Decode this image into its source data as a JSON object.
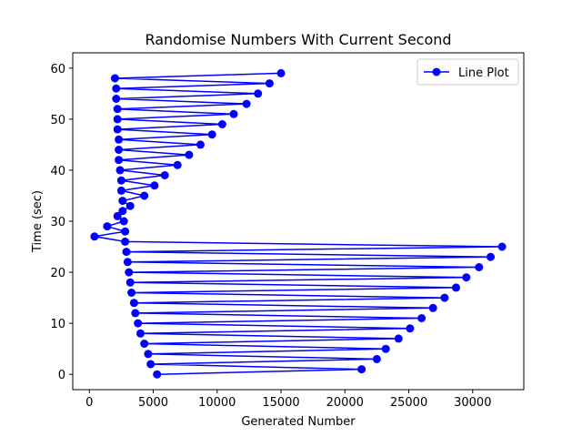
{
  "chart_data": {
    "type": "line",
    "title": "Randomise Numbers With Current Second",
    "xlabel": "Generated Number",
    "ylabel": "Time (sec)",
    "xlim": [
      -1300,
      34000
    ],
    "ylim": [
      -3,
      63
    ],
    "xticks": [
      0,
      5000,
      10000,
      15000,
      20000,
      25000,
      30000
    ],
    "yticks": [
      0,
      10,
      20,
      30,
      40,
      50,
      60
    ],
    "grid": false,
    "legend_position": "top-right",
    "colors": {
      "series": "#0000ff"
    },
    "series": [
      {
        "name": "Line Plot",
        "marker": "circle",
        "x": [
          5300,
          21300,
          4800,
          22500,
          4600,
          23200,
          4300,
          24200,
          4000,
          25100,
          3800,
          26000,
          3600,
          26900,
          3500,
          27800,
          3300,
          28700,
          3200,
          29500,
          3100,
          30500,
          3000,
          31400,
          2900,
          32300,
          2800,
          400,
          2800,
          1400,
          2700,
          2200,
          2600,
          3200,
          2600,
          4300,
          2500,
          5100,
          2500,
          5900,
          2400,
          6900,
          2300,
          7800,
          2300,
          8700,
          2300,
          9600,
          2200,
          10400,
          2200,
          11300,
          2200,
          12300,
          2100,
          13200,
          2100,
          14100,
          2000,
          15000
        ],
        "y": [
          0,
          1,
          2,
          3,
          4,
          5,
          6,
          7,
          8,
          9,
          10,
          11,
          12,
          13,
          14,
          15,
          16,
          17,
          18,
          19,
          20,
          21,
          22,
          23,
          24,
          25,
          26,
          27,
          28,
          29,
          30,
          31,
          32,
          33,
          34,
          35,
          36,
          37,
          38,
          39,
          40,
          41,
          42,
          43,
          44,
          45,
          46,
          47,
          48,
          49,
          50,
          51,
          52,
          53,
          54,
          55,
          56,
          57,
          58,
          59
        ]
      }
    ]
  }
}
